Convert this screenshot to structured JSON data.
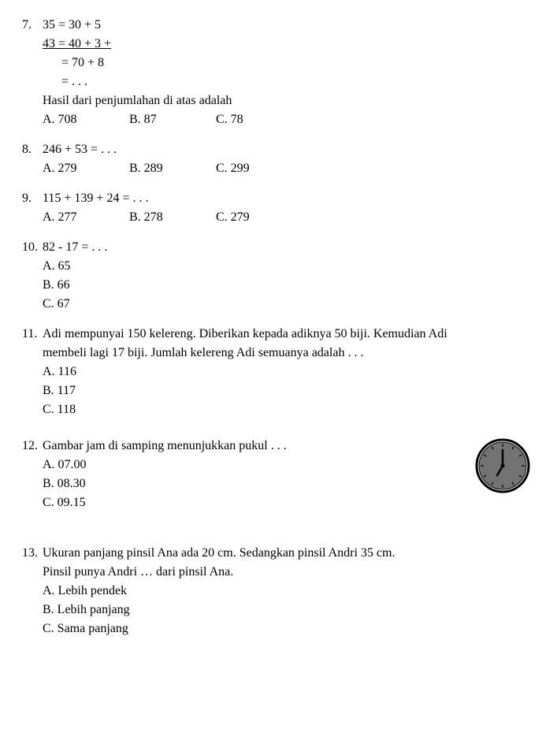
{
  "q7": {
    "num": "7.",
    "line1": "35  =  30  +  5",
    "line2": "43  =  40  +  3   +",
    "line3": "=  70  +  8",
    "line4": "=  . . .",
    "prompt": "Hasil dari penjumlahan di atas adalah",
    "optA": "A.  708",
    "optB": "B. 87",
    "optC": "C. 78"
  },
  "q8": {
    "num": "8.",
    "line1": "246  +  53  = . . .",
    "optA": "A.  279",
    "optB": "B. 289",
    "optC": "C. 299"
  },
  "q9": {
    "num": "9.",
    "line1": "115  +  139  +  24  =  . . .",
    "optA": "A.  277",
    "optB": "B. 278",
    "optC": "C. 279"
  },
  "q10": {
    "num": "10.",
    "line1": "82  -  17  = . . .",
    "optA": "A.  65",
    "optB": "B.  66",
    "optC": "C.  67"
  },
  "q11": {
    "num": "11.",
    "line1": "Adi mempunyai 150 kelereng. Diberikan kepada adiknya 50 biji. Kemudian Adi",
    "line2": "membeli lagi  17  biji. Jumlah kelereng Adi semuanya adalah . . .",
    "optA": "A.  116",
    "optB": "B.  117",
    "optC": "C.  118"
  },
  "q12": {
    "num": "12.",
    "line1": "Gambar jam di samping menunjukkan pukul . . .",
    "optA": "A.  07.00",
    "optB": "B.  08.30",
    "optC": "C.  09.15",
    "clock": {
      "face_fill": "#737373",
      "face_stroke": "#000000",
      "radius": 30,
      "hour_angle": 180,
      "minute_angle": 0,
      "hour_len": 14,
      "minute_len": 20,
      "stroke_width": 2.5
    }
  },
  "q13": {
    "num": "13.",
    "line1": "Ukuran panjang pinsil Ana ada 20 cm. Sedangkan pinsil Andri 35 cm.",
    "line2": "Pinsil punya Andri … dari pinsil Ana.",
    "optA": "A.  Lebih pendek",
    "optB": "B.  Lebih panjang",
    "optC": "C.  Sama panjang"
  }
}
